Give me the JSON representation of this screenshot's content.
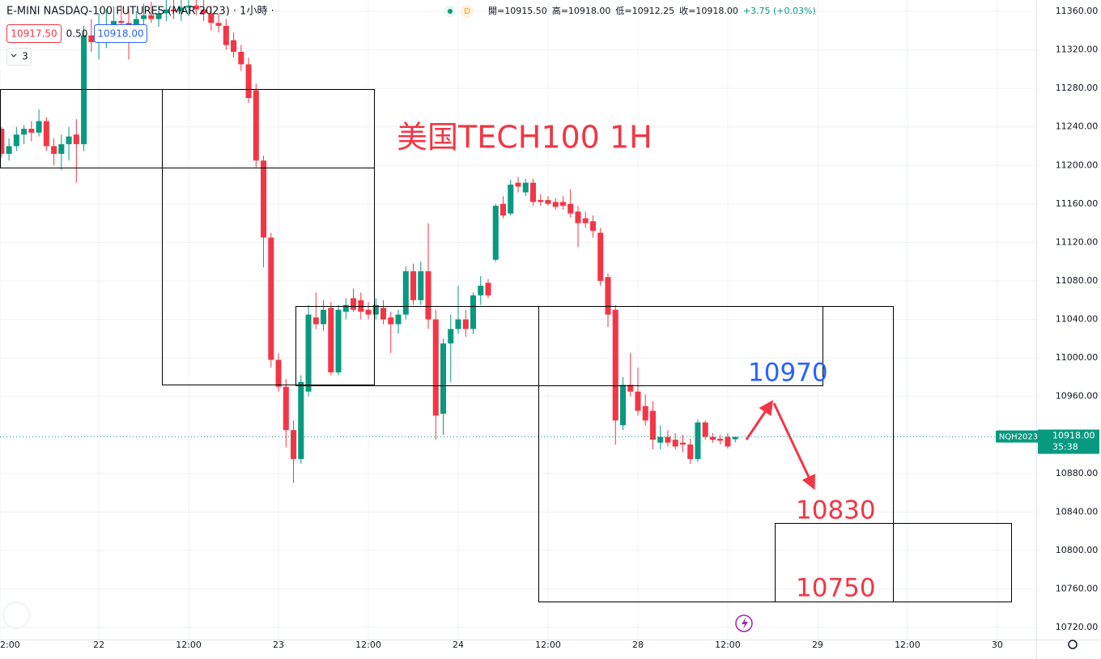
{
  "chart_data": {
    "type": "candlestick",
    "title": "E-MINI NASDAQ-100 FUTURES (MAR 2023) · 1小時 ·",
    "interval_badge": "D",
    "ohlc_header": [
      "開=10915.50",
      "高=10918.00",
      "低=10912.25",
      "收=10918.00",
      "+3.75 (+0.03%)"
    ],
    "bid": "10917.50",
    "spread": "0.50",
    "ask": "10918.00",
    "indicator_count": "3",
    "symbol_tag": "NQH2023",
    "price_line": {
      "value": 10918,
      "label": "10918.00"
    },
    "countdown": "35:38",
    "annotations": [
      "美国TECH100 1H",
      "10970",
      "10830",
      "10750"
    ],
    "up_color": "#089981",
    "down_color": "#f23645",
    "x": [
      -13,
      -12,
      -11,
      -10,
      -9,
      -8,
      -7,
      -6,
      -5,
      -4,
      -3,
      -2,
      -1,
      0,
      1,
      2,
      3,
      4,
      5,
      6,
      7,
      8,
      9,
      10,
      11,
      12,
      13,
      14,
      15,
      16,
      17,
      18,
      19,
      20,
      21,
      22,
      23,
      24,
      25,
      26,
      27,
      28,
      29,
      30,
      31,
      32,
      33,
      34,
      35,
      36,
      37,
      38,
      39,
      40,
      41,
      42,
      43,
      44,
      45,
      46,
      47,
      48,
      49,
      50,
      51,
      52,
      53,
      54,
      55,
      56,
      57,
      58,
      59,
      60,
      61,
      62,
      63,
      64,
      65,
      66,
      67,
      68,
      69,
      70,
      71,
      72,
      73,
      74,
      75,
      76,
      77,
      78,
      79,
      80,
      81,
      82,
      83,
      84,
      85
    ],
    "open": [
      11238,
      11212,
      11220,
      11232,
      11238,
      11234,
      11246,
      11220,
      11212,
      11222,
      11232,
      11222,
      11335,
      11328,
      11340,
      11346,
      11350,
      11348,
      11342,
      11352,
      11356,
      11352,
      11358,
      11362,
      11360,
      11364,
      11366,
      11362,
      11358,
      11348,
      11345,
      11330,
      11318,
      11305,
      11278,
      11205,
      11125,
      10998,
      10970,
      10925,
      10895,
      10965,
      11042,
      11035,
      11052,
      10985,
      11048,
      11062,
      11060,
      11050,
      11045,
      11052,
      11042,
      11035,
      11045,
      11090,
      11060,
      11090,
      11040,
      10942,
      11015,
      11030,
      11040,
      11030,
      11065,
      11078,
      11102,
      11160,
      11150,
      11182,
      11172,
      11182,
      11164,
      11164,
      11162,
      11162,
      11160,
      11152,
      11145,
      11142,
      11130,
      11084,
      11050,
      10930,
      10972,
      10965,
      10950,
      10945,
      10912,
      10918,
      10915,
      10912,
      10910,
      10895,
      10933,
      10918,
      10916,
      10918,
      10915.5
    ],
    "high": [
      11240,
      11228,
      11240,
      11242,
      11246,
      11258,
      11250,
      11228,
      11232,
      11240,
      11248,
      11345,
      11352,
      11358,
      11362,
      11365,
      11366,
      11362,
      11360,
      11368,
      11370,
      11366,
      11372,
      11375,
      11372,
      11378,
      11378,
      11372,
      11366,
      11358,
      11352,
      11338,
      11325,
      11312,
      11285,
      11210,
      11130,
      11005,
      10978,
      10935,
      10982,
      11055,
      11068,
      11060,
      11058,
      11055,
      11062,
      11072,
      11068,
      11058,
      11062,
      11060,
      11048,
      11050,
      11095,
      11098,
      11100,
      11140,
      11050,
      11020,
      11045,
      11075,
      11050,
      11068,
      11085,
      11082,
      11160,
      11168,
      11185,
      11188,
      11186,
      11186,
      11170,
      11168,
      11166,
      11168,
      11175,
      11158,
      11152,
      11148,
      11135,
      11088,
      11055,
      10980,
      11005,
      10990,
      10962,
      10955,
      10930,
      10925,
      10922,
      10920,
      10916,
      10936,
      10935,
      10922,
      10920,
      10922,
      10918
    ],
    "low": [
      11208,
      11205,
      11215,
      11222,
      11225,
      11230,
      11215,
      11200,
      11195,
      11205,
      11182,
      11215,
      11318,
      11310,
      11322,
      11330,
      11338,
      11310,
      11335,
      11345,
      11348,
      11344,
      11350,
      11352,
      11350,
      11355,
      11356,
      11350,
      11340,
      11338,
      11320,
      11312,
      11298,
      11265,
      11198,
      11094,
      10990,
      10965,
      10907,
      10870,
      10890,
      10960,
      11030,
      11028,
      10982,
      10982,
      11040,
      11048,
      11040,
      11040,
      11040,
      11035,
      11005,
      11025,
      11040,
      11055,
      11055,
      11030,
      10915,
      10920,
      10975,
      11025,
      11022,
      11025,
      11055,
      11062,
      11100,
      11145,
      11148,
      11172,
      11168,
      11158,
      11158,
      11158,
      11154,
      11154,
      11146,
      11115,
      11135,
      11125,
      11075,
      11032,
      10910,
      10925,
      10960,
      10940,
      10930,
      10905,
      10905,
      10908,
      10905,
      10902,
      10890,
      10892,
      10915,
      10912,
      10910,
      10906,
      10912.25
    ],
    "close": [
      11212,
      11220,
      11232,
      11238,
      11234,
      11246,
      11220,
      11212,
      11222,
      11230,
      11222,
      11335,
      11328,
      11340,
      11346,
      11350,
      11348,
      11342,
      11352,
      11356,
      11352,
      11358,
      11362,
      11360,
      11364,
      11366,
      11362,
      11358,
      11348,
      11345,
      11325,
      11318,
      11305,
      11270,
      11205,
      11125,
      10998,
      10970,
      10925,
      10895,
      10975,
      11045,
      11035,
      11050,
      10985,
      11050,
      11055,
      11050,
      11048,
      11045,
      11055,
      11040,
      11035,
      11045,
      11090,
      11060,
      11090,
      11040,
      10940,
      11015,
      11030,
      11040,
      11030,
      11065,
      11075,
      11065,
      11158,
      11148,
      11180,
      11178,
      11182,
      11162,
      11162,
      11160,
      11157,
      11158,
      11150,
      11140,
      11140,
      11132,
      11080,
      11045,
      10935,
      10972,
      10965,
      10945,
      10935,
      10915,
      10918,
      10912,
      10908,
      10910,
      10895,
      10933,
      10918,
      10915,
      10914,
      10908,
      10918
    ],
    "xlim": [
      -13.2,
      125.2
    ],
    "xticks": [
      {
        "value": -13.2,
        "label": "2:00"
      },
      {
        "value": 0,
        "label": "22"
      },
      {
        "value": 12,
        "label": "12:00"
      },
      {
        "value": 24,
        "label": "23"
      },
      {
        "value": 36,
        "label": "12:00"
      },
      {
        "value": 48,
        "label": "24"
      },
      {
        "value": 60,
        "label": "12:00"
      },
      {
        "value": 72,
        "label": "28"
      },
      {
        "value": 84,
        "label": "12:00"
      },
      {
        "value": 96,
        "label": "29"
      },
      {
        "value": 108,
        "label": "12:00"
      },
      {
        "value": 120,
        "label": "30"
      }
    ],
    "ylim": [
      10707.4,
      11371.8
    ],
    "yticks": [
      {
        "value": 10720,
        "label": "10720.00"
      },
      {
        "value": 10760,
        "label": "10760.00"
      },
      {
        "value": 10800,
        "label": "10800.00"
      },
      {
        "value": 10840,
        "label": "10840.00"
      },
      {
        "value": 10880,
        "label": "10880.00"
      },
      {
        "value": 10920,
        "label": "10920.00"
      },
      {
        "value": 10960,
        "label": "10960.00"
      },
      {
        "value": 11000,
        "label": "11000.00"
      },
      {
        "value": 11040,
        "label": "11040.00"
      },
      {
        "value": 11080,
        "label": "11080.00"
      },
      {
        "value": 11120,
        "label": "11120.00"
      },
      {
        "value": 11160,
        "label": "11160.00"
      },
      {
        "value": 11200,
        "label": "11200.00"
      },
      {
        "value": 11240,
        "label": "11240.00"
      },
      {
        "value": 11280,
        "label": "11280.00"
      },
      {
        "value": 11320,
        "label": "11320.00"
      },
      {
        "value": 11360,
        "label": "11360.00"
      }
    ],
    "grid": true
  }
}
